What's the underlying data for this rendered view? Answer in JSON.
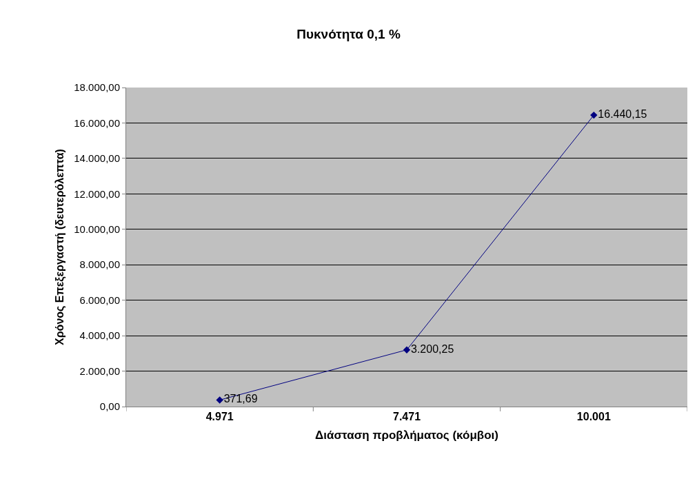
{
  "chart_data": {
    "type": "line",
    "title": "Πυκνότητα 0,1 %",
    "xlabel": "Διάσταση προβλήματος (κόμβοι)",
    "ylabel": "Χρόνος Επεξεργαστή (δευτερόλεπτα)",
    "categories": [
      "4.971",
      "7.471",
      "10.001"
    ],
    "series": [
      {
        "color": "#000080",
        "values": [
          371.69,
          3200.25,
          16440.15
        ],
        "value_labels": [
          "371,69",
          "3.200,25",
          "16.440,15"
        ]
      }
    ],
    "ylim": [
      0,
      18000
    ],
    "yticks": [
      {
        "value": 0,
        "label": "0,00"
      },
      {
        "value": 2000,
        "label": "2.000,00"
      },
      {
        "value": 4000,
        "label": "4.000,00"
      },
      {
        "value": 6000,
        "label": "6.000,00"
      },
      {
        "value": 8000,
        "label": "8.000,00"
      },
      {
        "value": 10000,
        "label": "10.000,00"
      },
      {
        "value": 12000,
        "label": "12.000,00"
      },
      {
        "value": 14000,
        "label": "14.000,00"
      },
      {
        "value": 16000,
        "label": "16.000,00"
      },
      {
        "value": 18000,
        "label": "18.000,00"
      }
    ],
    "grid": "y",
    "marker": "diamond",
    "line_style": "solid"
  }
}
